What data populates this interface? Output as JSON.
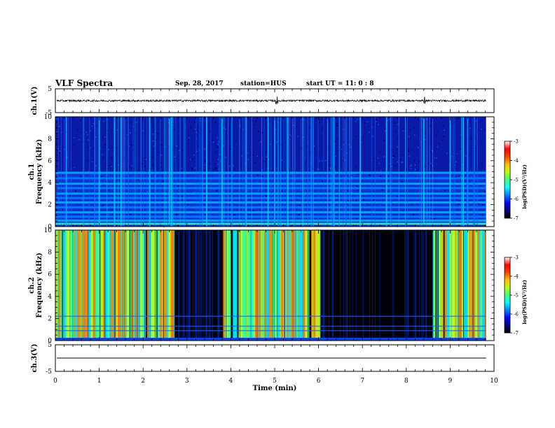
{
  "header": {
    "title": "VLF Spectra",
    "date": "Sep. 28, 2017",
    "station": "station=HUS",
    "start": "start  UT =   11: 0  : 8"
  },
  "colors": {
    "waveform": "#000000",
    "background": "#ffffff",
    "colormap": [
      "#000000",
      "#00007f",
      "#0000ff",
      "#007fff",
      "#00ffff",
      "#7fff7f",
      "#ffff00",
      "#ff7f00",
      "#ff0000",
      "#ffffff"
    ]
  },
  "chart_data": [
    {
      "type": "line",
      "name": "ch1-waveform",
      "ylabel": "ch.1(V)",
      "ylim": [
        -5,
        5
      ],
      "yticks": [
        "5",
        "-5"
      ],
      "xlim": [
        0,
        10
      ],
      "description_values": {
        "baseline": 0.0,
        "amplitude_typical": 0.4,
        "spike_times_min": [
          5.05,
          8.4
        ]
      }
    },
    {
      "type": "heatmap",
      "name": "ch1-spectrogram",
      "ylabel": "ch.1",
      "ylabel2": "Frequency (kHz)",
      "ylim": [
        0,
        10
      ],
      "yticks": [
        "0",
        "2",
        "4",
        "6",
        "8",
        "10"
      ],
      "xlim": [
        0,
        10
      ],
      "data_end_min": 9.82,
      "colorbar": {
        "label": "log(PSD)(V²/Hz)",
        "range": [
          -7,
          -3
        ],
        "ticks": [
          "-3",
          "-4",
          "-5",
          "-6",
          "-7"
        ]
      },
      "bands_khz": [
        0.3,
        0.55,
        0.9,
        1.3,
        1.75,
        2.2,
        2.6,
        3.0,
        3.5,
        3.9,
        4.4,
        4.9
      ],
      "bursts_min": [
        0.25,
        1.0,
        1.35,
        1.5,
        2.15,
        2.6,
        2.65,
        3.45,
        3.8,
        4.35,
        4.85,
        5.0,
        5.3,
        6.35,
        6.95,
        7.55,
        8.4,
        9.0,
        9.3
      ]
    },
    {
      "type": "heatmap",
      "name": "ch2-spectrogram",
      "ylabel": "ch.2",
      "ylabel2": "Frequency (kHz)",
      "ylim": [
        0,
        10
      ],
      "yticks": [
        "0",
        "2",
        "4",
        "6",
        "8",
        "10"
      ],
      "xlim": [
        0,
        10
      ],
      "data_end_min": 9.82,
      "colorbar": {
        "label": "log(PSD)(V²/Hz)",
        "range": [
          -7,
          -3
        ],
        "ticks": [
          "-3",
          "-4",
          "-5",
          "-6",
          "-7"
        ]
      },
      "active_intervals_min": [
        [
          0.0,
          2.7
        ],
        [
          3.8,
          6.0
        ],
        [
          8.6,
          9.82
        ]
      ],
      "quiet_intervals_min": [
        [
          2.7,
          3.8
        ],
        [
          6.0,
          8.6
        ]
      ]
    },
    {
      "type": "line",
      "name": "ch3-waveform",
      "ylabel": "ch.3(V)",
      "ylim": [
        -5,
        5
      ],
      "yticks": [
        "5",
        "-5"
      ],
      "xlim": [
        0,
        10
      ],
      "xlabel": "Time  (min)",
      "xticks": [
        "0",
        "1",
        "2",
        "3",
        "4",
        "5",
        "6",
        "7",
        "8",
        "9",
        "10"
      ],
      "description_values": {
        "baseline": 0.0
      }
    }
  ]
}
